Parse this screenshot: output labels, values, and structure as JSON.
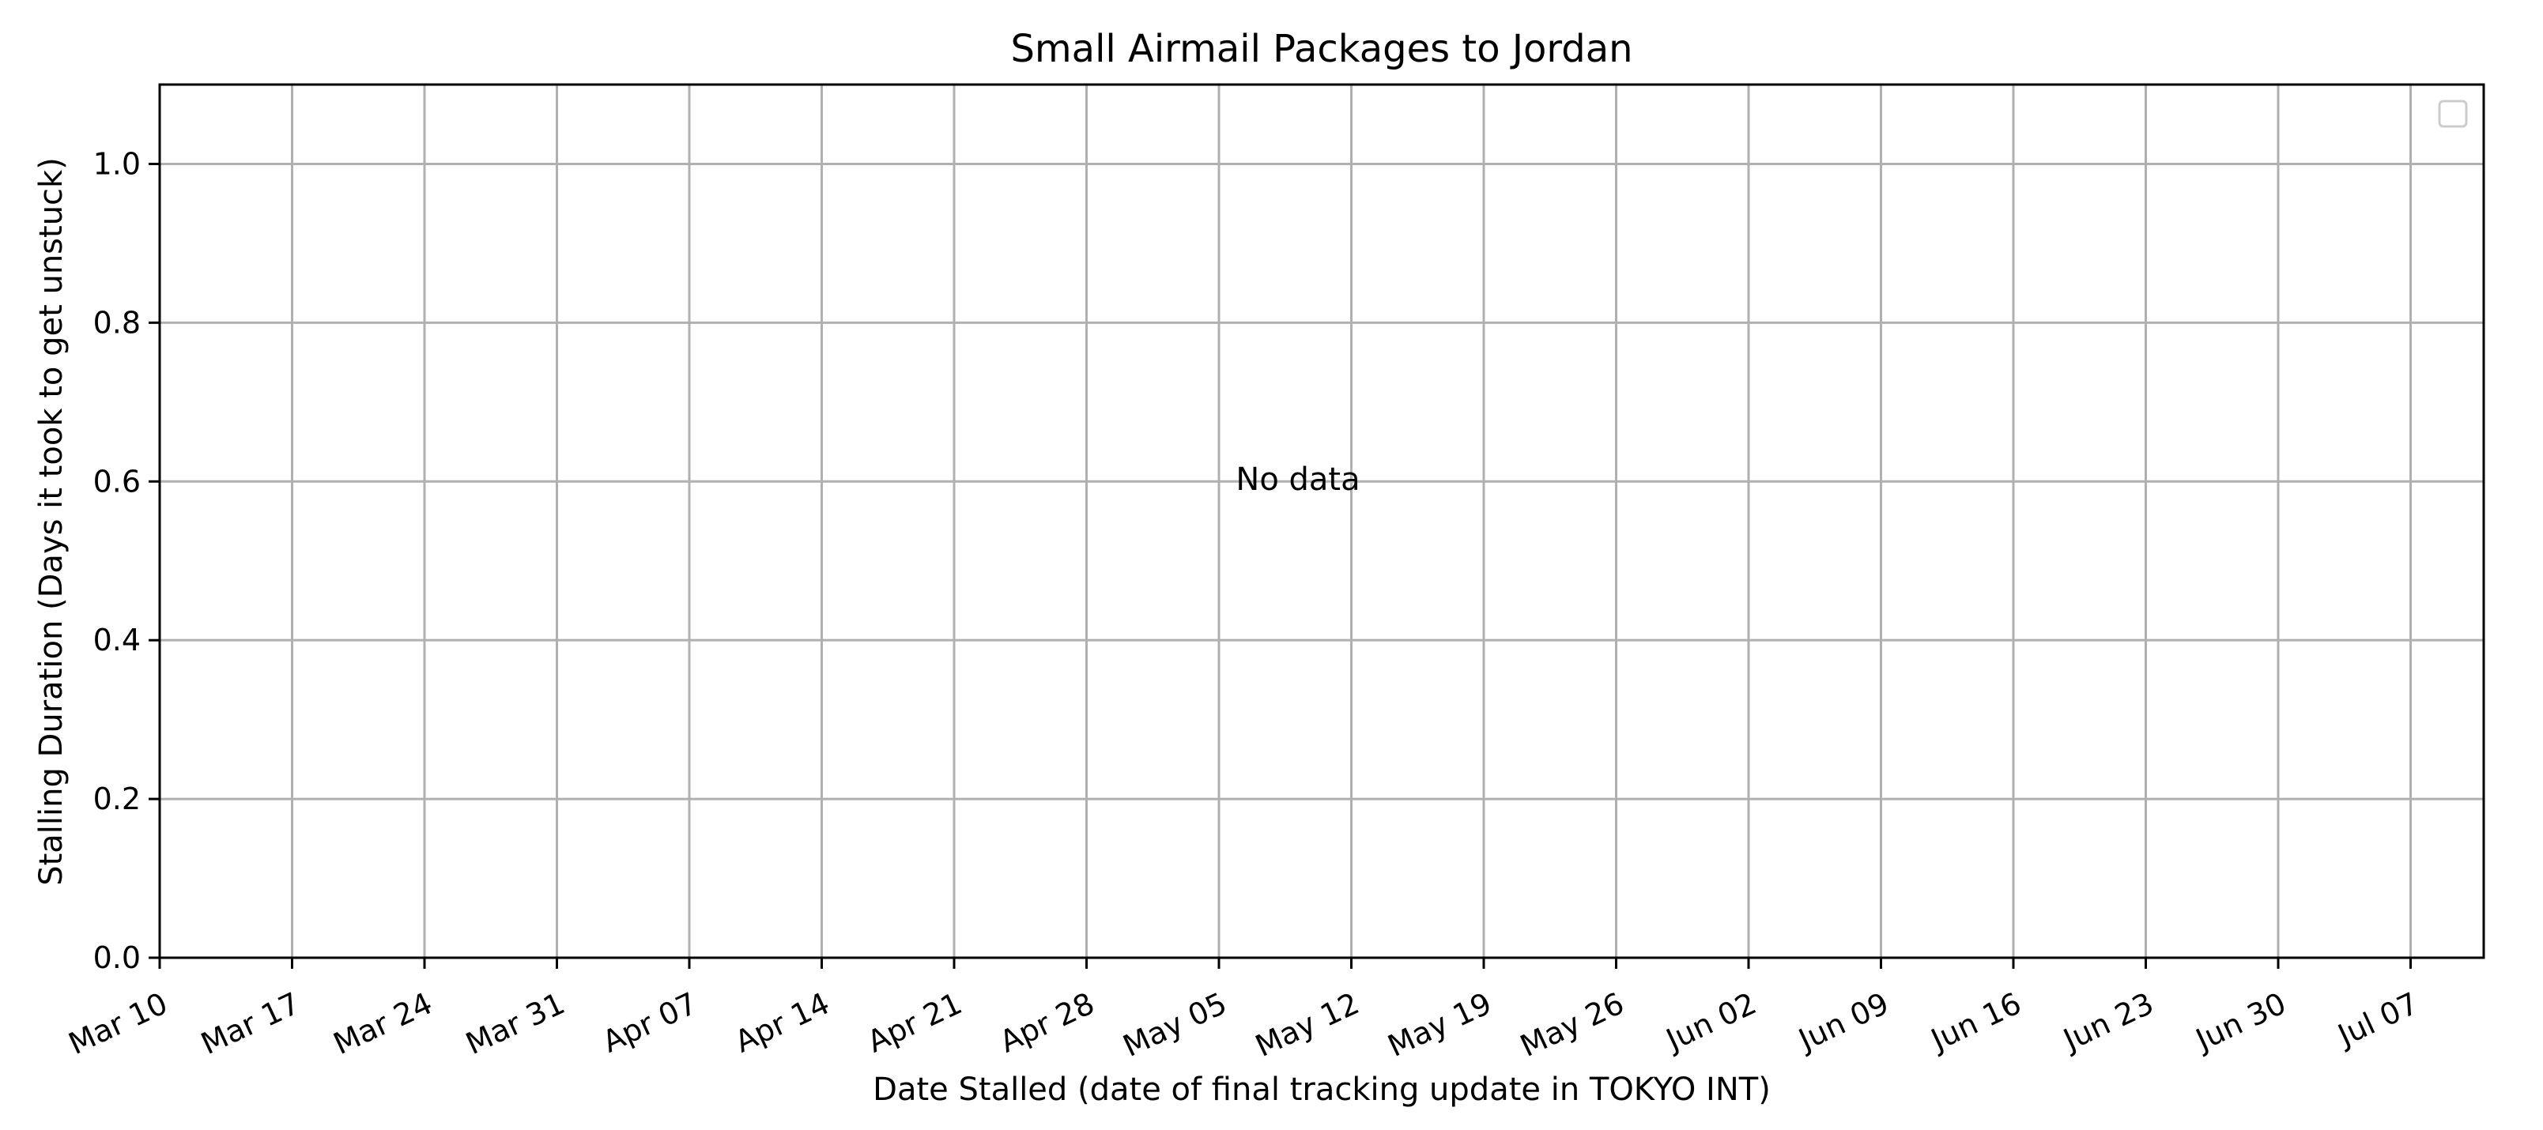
{
  "chart_data": {
    "type": "scatter",
    "title": "Small Airmail Packages to Jordan",
    "xlabel": "Date Stalled (date of final tracking update in TOKYO INT)",
    "ylabel": "Stalling Duration (Days it took to get unstuck)",
    "x_tick_labels": [
      "Mar 10",
      "Mar 17",
      "Mar 24",
      "Mar 31",
      "Apr 07",
      "Apr 14",
      "Apr 21",
      "Apr 28",
      "May 05",
      "May 12",
      "May 19",
      "May 26",
      "Jun 02",
      "Jun 09",
      "Jun 16",
      "Jun 23",
      "Jun 30",
      "Jul 07"
    ],
    "y_ticks": [
      0.0,
      0.2,
      0.4,
      0.6,
      0.8,
      1.0
    ],
    "y_tick_labels": [
      "0.0",
      "0.2",
      "0.4",
      "0.6",
      "0.8",
      "1.0"
    ],
    "ylim": [
      0,
      1.1
    ],
    "grid": true,
    "legend": {
      "placement": "top-right",
      "entries": []
    },
    "annotation": "No data",
    "series": [],
    "colors": {
      "grid": "#b0b0b0",
      "axis": "#000000",
      "legend_border": "#cccccc"
    }
  }
}
